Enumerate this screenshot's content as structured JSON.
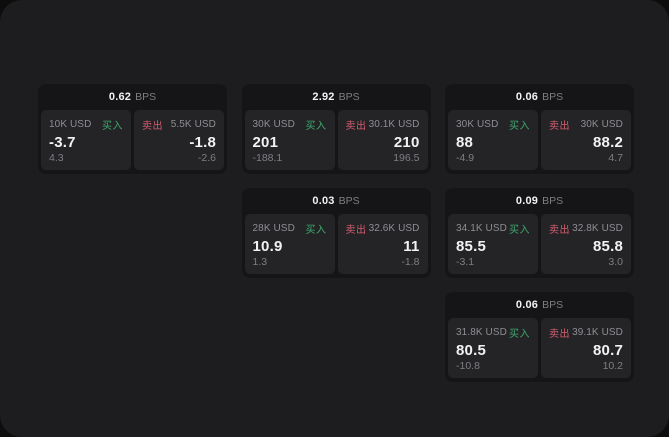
{
  "colors": {
    "buy": "#3fa96c",
    "sell": "#d45c6e",
    "window_bg": "#1d1d1f",
    "card_bg": "#151517",
    "panel_bg": "#242427"
  },
  "labels": {
    "bps_unit": "BPS",
    "buy_side": "买入",
    "sell_side": "卖出"
  },
  "cards": [
    {
      "col": 1,
      "row": 1,
      "bps_value": "0.62",
      "bps_unit": "BPS",
      "buy": {
        "amount": "10K USD",
        "side_label": "买入",
        "price": "-3.7",
        "delta": "4.3"
      },
      "sell": {
        "amount": "5.5K USD",
        "side_label": "卖出",
        "price": "-1.8",
        "delta": "-2.6"
      }
    },
    {
      "col": 2,
      "row": 1,
      "bps_value": "2.92",
      "bps_unit": "BPS",
      "buy": {
        "amount": "30K USD",
        "side_label": "买入",
        "price": "201",
        "delta": "-188.1"
      },
      "sell": {
        "amount": "30.1K USD",
        "side_label": "卖出",
        "price": "210",
        "delta": "196.5"
      }
    },
    {
      "col": 3,
      "row": 1,
      "bps_value": "0.06",
      "bps_unit": "BPS",
      "buy": {
        "amount": "30K USD",
        "side_label": "买入",
        "price": "88",
        "delta": "-4.9"
      },
      "sell": {
        "amount": "30K USD",
        "side_label": "卖出",
        "price": "88.2",
        "delta": "4.7"
      }
    },
    {
      "col": 2,
      "row": 2,
      "bps_value": "0.03",
      "bps_unit": "BPS",
      "buy": {
        "amount": "28K USD",
        "side_label": "买入",
        "price": "10.9",
        "delta": "1.3"
      },
      "sell": {
        "amount": "32.6K USD",
        "side_label": "卖出",
        "price": "11",
        "delta": "-1.8"
      }
    },
    {
      "col": 3,
      "row": 2,
      "bps_value": "0.09",
      "bps_unit": "BPS",
      "buy": {
        "amount": "34.1K USD",
        "side_label": "买入",
        "price": "85.5",
        "delta": "-3.1"
      },
      "sell": {
        "amount": "32.8K USD",
        "side_label": "卖出",
        "price": "85.8",
        "delta": "3.0"
      }
    },
    {
      "col": 3,
      "row": 3,
      "bps_value": "0.06",
      "bps_unit": "BPS",
      "buy": {
        "amount": "31.8K USD",
        "side_label": "买入",
        "price": "80.5",
        "delta": "-10.8"
      },
      "sell": {
        "amount": "39.1K USD",
        "side_label": "卖出",
        "price": "80.7",
        "delta": "10.2"
      }
    }
  ]
}
